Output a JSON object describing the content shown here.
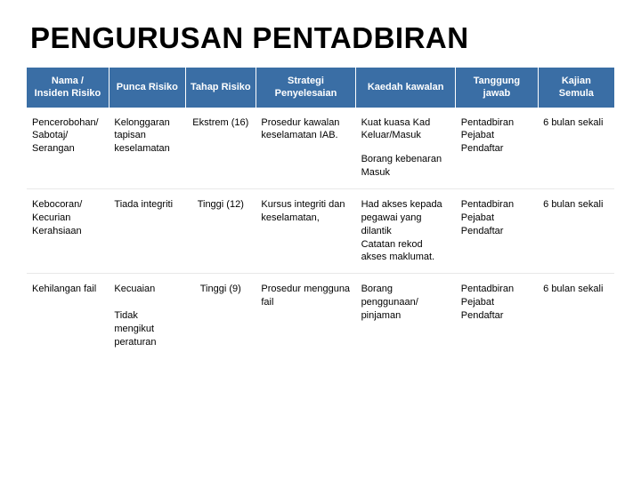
{
  "title": "PENGURUSAN PENTADBIRAN",
  "table": {
    "header_bg": "#3a6ea5",
    "header_fg": "#ffffff",
    "body_fg": "#000000",
    "border_color": "#e8e8e8",
    "header_fontsize": 11,
    "body_fontsize": 11,
    "columns": [
      {
        "label": "Nama /\nInsiden Risiko",
        "width_pct": 14,
        "align": "center"
      },
      {
        "label": "Punca Risiko",
        "width_pct": 13,
        "align": "center"
      },
      {
        "label": "Tahap Risiko",
        "width_pct": 12,
        "align": "center"
      },
      {
        "label": "Strategi\nPenyelesaian",
        "width_pct": 17,
        "align": "center"
      },
      {
        "label": "Kaedah kawalan",
        "width_pct": 17,
        "align": "center"
      },
      {
        "label": "Tanggung\njawab",
        "width_pct": 14,
        "align": "center"
      },
      {
        "label": "Kajian\nSemula",
        "width_pct": 13,
        "align": "center"
      }
    ],
    "rows": [
      {
        "nama": "Pencerobohan/\nSabotaj/\nSerangan",
        "punca": "Kelonggaran tapisan keselamatan",
        "tahap": "Ekstrem (16)",
        "strategi": "Prosedur kawalan keselamatan IAB.",
        "kaedah_a": "Kuat kuasa Kad Keluar/Masuk",
        "kaedah_b": "Borang kebenaran Masuk",
        "tanggung": "Pentadbiran Pejabat Pendaftar",
        "kajian": "6 bulan sekali"
      },
      {
        "nama": "Kebocoran/\nKecurian\nKerahsiaan",
        "punca": "Tiada integriti",
        "tahap": "Tinggi (12)",
        "strategi": "Kursus integriti dan keselamatan,",
        "kaedah": "Had akses kepada pegawai yang dilantik\nCatatan rekod akses maklumat.",
        "tanggung": "Pentadbiran Pejabat Pendaftar",
        "kajian": "6 bulan sekali"
      },
      {
        "nama": "Kehilangan fail",
        "punca": "Kecuaian\n\nTidak mengikut peraturan",
        "tahap": "Tinggi (9)",
        "strategi": "Prosedur mengguna fail",
        "kaedah": "Borang penggunaan/ pinjaman",
        "tanggung": "Pentadbiran Pejabat Pendaftar",
        "kajian": "6 bulan sekali"
      }
    ]
  }
}
